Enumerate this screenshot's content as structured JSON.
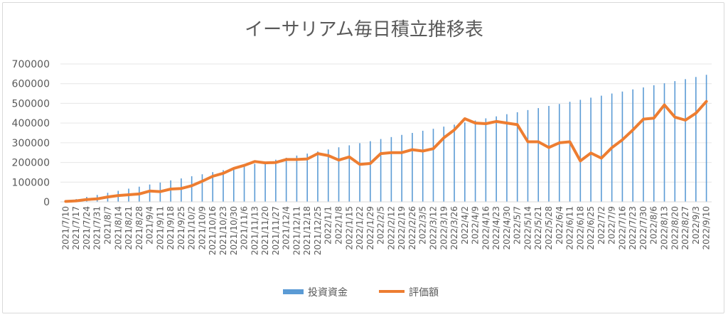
{
  "chart_data": {
    "type": "bar+line",
    "title": "イーサリアム毎日積立推移表",
    "ylim": [
      0,
      700000
    ],
    "yticks": [
      "0",
      "100000",
      "200000",
      "300000",
      "400000",
      "500000",
      "600000",
      "700000"
    ],
    "x_labels": [
      "2021/7/10",
      "2021/7/17",
      "2021/7/24",
      "2021/7/31",
      "2021/8/7",
      "2021/8/14",
      "2021/8/21",
      "2021/8/28",
      "2021/9/4",
      "2021/9/11",
      "2021/9/18",
      "2021/9/25",
      "2021/10/2",
      "2021/10/9",
      "2021/10/16",
      "2021/10/23",
      "2021/10/30",
      "2021/11/6",
      "2021/11/13",
      "2021/11/20",
      "2021/11/27",
      "2021/12/4",
      "2021/12/11",
      "2021/12/18",
      "2021/12/25",
      "2022/1/1",
      "2022/1/8",
      "2022/1/15",
      "2022/1/22",
      "2022/1/29",
      "2022/2/5",
      "2022/2/12",
      "2022/2/19",
      "2022/2/26",
      "2022/3/5",
      "2022/3/12",
      "2022/3/19",
      "2022/3/26",
      "2022/4/2",
      "2022/4/9",
      "2022/4/16",
      "2022/4/23",
      "2022/4/30",
      "2022/5/7",
      "2022/5/14",
      "2022/5/21",
      "2022/5/28",
      "2022/6/4",
      "2022/6/11",
      "2022/6/18",
      "2022/6/25",
      "2022/7/2",
      "2022/7/9",
      "2022/7/16",
      "2022/7/23",
      "2022/7/30",
      "2022/8/6",
      "2022/8/13",
      "2022/8/20",
      "2022/8/27",
      "2022/9/3",
      "2022/9/10"
    ],
    "legend_position": "bottom",
    "series": [
      {
        "name": "投資資金",
        "kind": "bar",
        "color": "#5b9bd5",
        "values": [
          3000,
          14000,
          25000,
          35000,
          46000,
          56000,
          67000,
          77000,
          88000,
          98000,
          109000,
          119000,
          130000,
          140000,
          151000,
          161000,
          172000,
          182000,
          193000,
          203000,
          214000,
          224000,
          235000,
          245000,
          256000,
          266000,
          277000,
          287000,
          298000,
          308000,
          319000,
          329000,
          340000,
          350000,
          361000,
          371000,
          382000,
          392000,
          403000,
          413000,
          424000,
          434000,
          445000,
          455000,
          466000,
          476000,
          487000,
          497000,
          508000,
          518000,
          529000,
          539000,
          550000,
          560000,
          571000,
          581000,
          592000,
          602000,
          613000,
          623000,
          634000,
          645000
        ]
      },
      {
        "name": "評価額",
        "kind": "line",
        "color": "#ed7d31",
        "values": [
          2000,
          5000,
          12000,
          15000,
          25000,
          32000,
          36000,
          40000,
          55000,
          52000,
          65000,
          68000,
          82000,
          105000,
          130000,
          145000,
          170000,
          185000,
          205000,
          198000,
          200000,
          215000,
          215000,
          218000,
          245000,
          235000,
          212000,
          228000,
          190000,
          195000,
          245000,
          250000,
          250000,
          265000,
          258000,
          270000,
          325000,
          365000,
          422000,
          400000,
          397000,
          408000,
          400000,
          392000,
          305000,
          305000,
          276000,
          300000,
          305000,
          208000,
          248000,
          222000,
          275000,
          315000,
          365000,
          420000,
          425000,
          492000,
          430000,
          415000,
          450000,
          510000
        ]
      }
    ]
  }
}
